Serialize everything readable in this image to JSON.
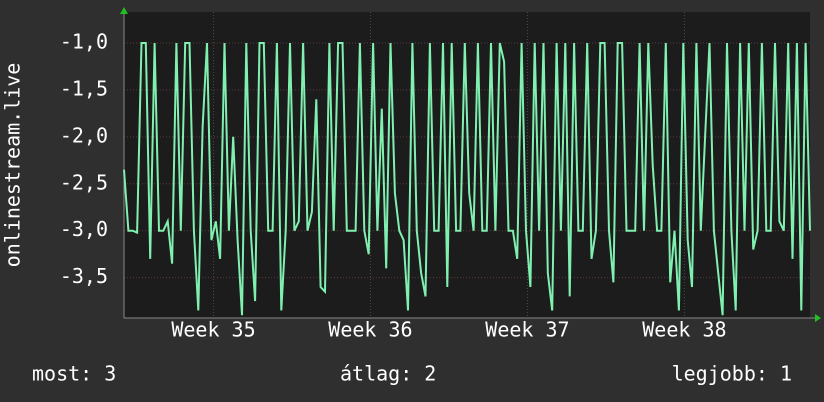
{
  "chart_data": {
    "type": "line",
    "y_label": "onlinestream.live",
    "series": [
      {
        "name": "onlinestream.live",
        "color": "#80f0b0",
        "values": [
          -2.35,
          -3.0,
          -3.0,
          -3.02,
          -1.0,
          -1.0,
          -3.3,
          -1.0,
          -3.0,
          -3.0,
          -2.9,
          -3.35,
          -1.0,
          -3.0,
          -1.0,
          -1.0,
          -3.0,
          -3.85,
          -1.9,
          -1.0,
          -3.1,
          -2.9,
          -3.3,
          -1.0,
          -3.0,
          -2.0,
          -3.1,
          -3.9,
          -1.0,
          -3.0,
          -3.75,
          -1.0,
          -1.0,
          -3.0,
          -3.0,
          -1.0,
          -3.85,
          -3.0,
          -1.0,
          -3.0,
          -2.9,
          -1.0,
          -3.0,
          -2.8,
          -1.6,
          -3.6,
          -3.65,
          -1.0,
          -3.0,
          -1.0,
          -1.0,
          -3.0,
          -3.0,
          -3.0,
          -1.0,
          -3.0,
          -3.25,
          -1.0,
          -3.0,
          -1.7,
          -3.4,
          -1.0,
          -2.6,
          -3.0,
          -3.1,
          -3.85,
          -1.0,
          -3.0,
          -3.45,
          -3.7,
          -1.0,
          -3.0,
          -3.0,
          -1.0,
          -3.6,
          -1.0,
          -3.0,
          -3.0,
          -1.0,
          -2.6,
          -3.0,
          -1.0,
          -3.0,
          -3.0,
          -1.0,
          -3.0,
          -1.0,
          -1.2,
          -3.0,
          -3.0,
          -3.3,
          -1.0,
          -3.0,
          -3.6,
          -1.0,
          -3.0,
          -1.0,
          -3.45,
          -3.85,
          -1.0,
          -3.0,
          -1.0,
          -3.7,
          -1.0,
          -3.0,
          -3.0,
          -1.0,
          -3.3,
          -3.0,
          -1.0,
          -1.0,
          -3.0,
          -3.55,
          -1.0,
          -1.0,
          -3.0,
          -3.0,
          -3.0,
          -1.0,
          -3.0,
          -1.0,
          -2.3,
          -3.0,
          -3.0,
          -1.0,
          -3.55,
          -3.0,
          -3.85,
          -1.0,
          -3.1,
          -3.6,
          -1.0,
          -3.0,
          -2.0,
          -1.0,
          -3.0,
          -3.45,
          -3.9,
          -1.0,
          -3.0,
          -3.85,
          -1.0,
          -3.0,
          -1.0,
          -3.2,
          -3.0,
          -1.0,
          -3.0,
          -3.0,
          -1.0,
          -2.9,
          -3.0,
          -1.0,
          -3.3,
          -1.0,
          -3.85,
          -1.0,
          -3.0
        ]
      }
    ],
    "xlim": [
      34.43,
      38.8
    ],
    "xticks": [
      {
        "value": 35,
        "label": "Week 35"
      },
      {
        "value": 36,
        "label": "Week 36"
      },
      {
        "value": 37,
        "label": "Week 37"
      },
      {
        "value": 38,
        "label": "Week 38"
      }
    ],
    "ylim": [
      -3.93,
      -0.67
    ],
    "yticks": [
      {
        "value": -1.0,
        "label": "-1,0"
      },
      {
        "value": -1.5,
        "label": "-1,5"
      },
      {
        "value": -2.0,
        "label": "-2,0"
      },
      {
        "value": -2.5,
        "label": "-2,5"
      },
      {
        "value": -3.0,
        "label": "-3,0"
      },
      {
        "value": -3.5,
        "label": "-3,5"
      }
    ],
    "grid": true,
    "footer": {
      "current": "most: 3",
      "average": "átlag: 2",
      "best": "legjobb: 1"
    }
  }
}
